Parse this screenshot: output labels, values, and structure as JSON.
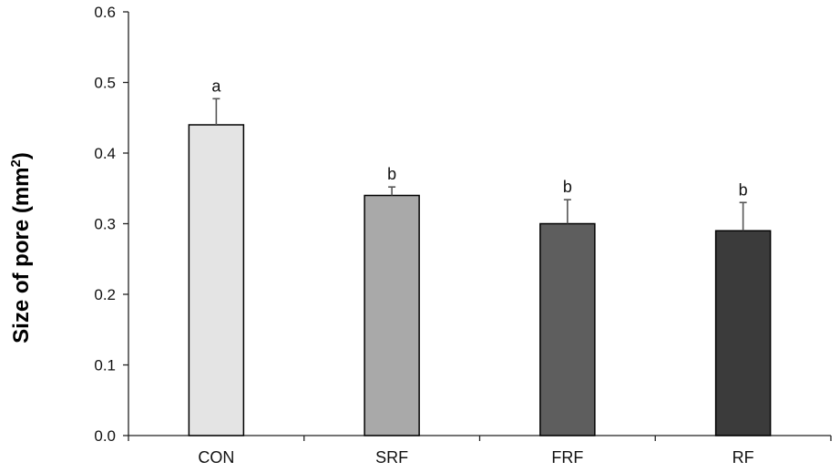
{
  "chart_data": {
    "type": "bar",
    "title": "",
    "xlabel": "",
    "ylabel": "Size of pore (mm",
    "ylabel_sup": "2",
    "ylabel_close": ")",
    "ylim": [
      0.0,
      0.6
    ],
    "yticks": [
      "0.0",
      "0.1",
      "0.2",
      "0.3",
      "0.4",
      "0.5",
      "0.6"
    ],
    "ytick_values": [
      0.0,
      0.1,
      0.2,
      0.3,
      0.4,
      0.5,
      0.6
    ],
    "categories": [
      "CON",
      "SRF",
      "FRF",
      "RF"
    ],
    "values": [
      0.44,
      0.34,
      0.3,
      0.29
    ],
    "errors": [
      0.037,
      0.012,
      0.034,
      0.04
    ],
    "significance": [
      "a",
      "b",
      "b",
      "b"
    ],
    "bar_colors": [
      "#e4e4e4",
      "#a9a9a9",
      "#5e5e5e",
      "#3b3b3b"
    ],
    "grid": false,
    "legend": "none"
  }
}
